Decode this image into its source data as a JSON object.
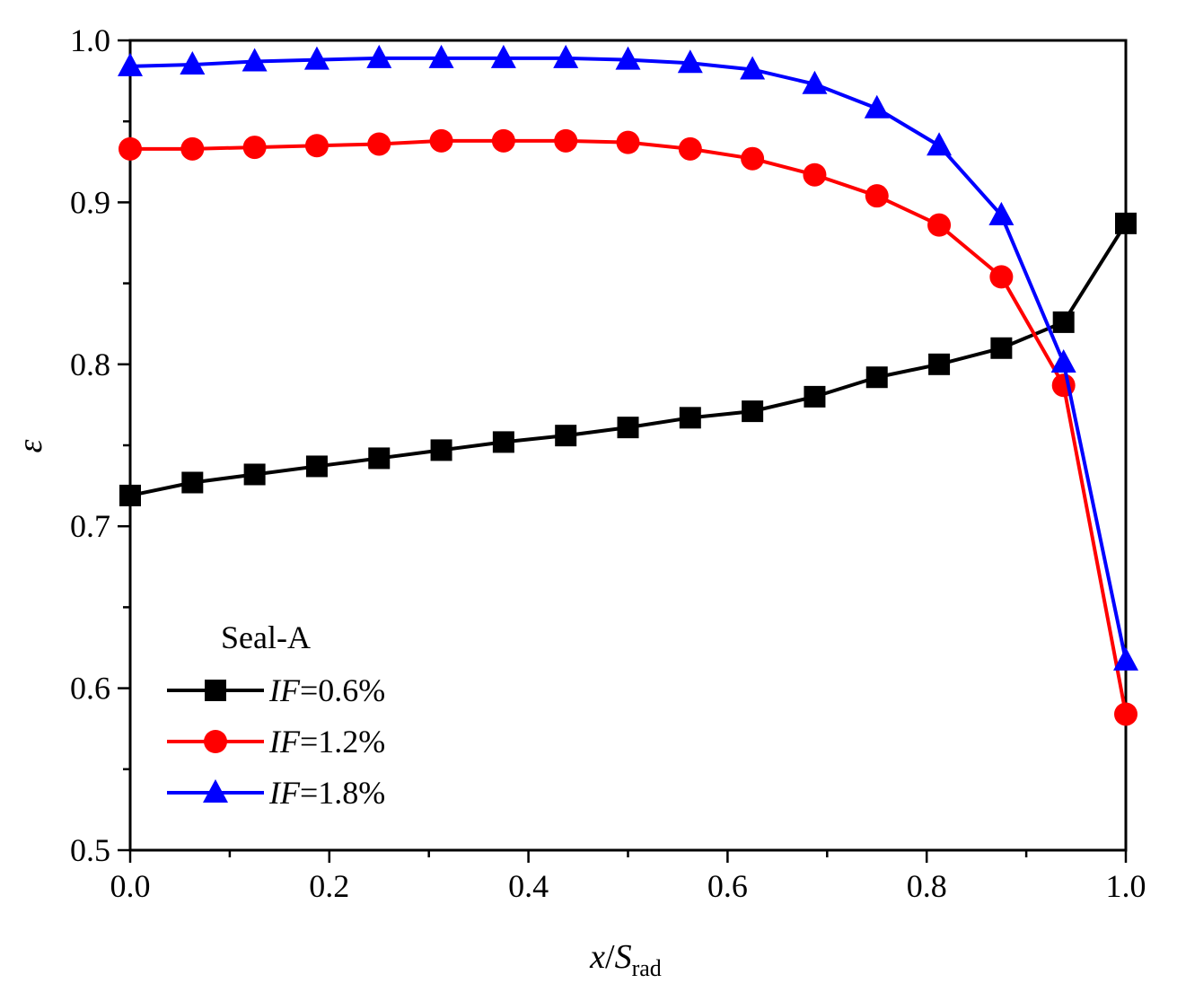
{
  "chart_data": {
    "type": "line",
    "title": "",
    "xlabel": {
      "main": "x",
      "sep": "/",
      "var": "S",
      "sub": "rad"
    },
    "ylabel": "ε",
    "xlim": [
      0.0,
      1.0
    ],
    "ylim": [
      0.5,
      1.0
    ],
    "x_ticks": [
      0.0,
      0.2,
      0.4,
      0.6,
      0.8,
      1.0
    ],
    "x_tick_labels": [
      "0.0",
      "0.2",
      "0.4",
      "0.6",
      "0.8",
      "1.0"
    ],
    "y_ticks": [
      0.5,
      0.6,
      0.7,
      0.8,
      0.9,
      1.0
    ],
    "y_tick_labels": [
      "0.5",
      "0.6",
      "0.7",
      "0.8",
      "0.9",
      "1.0"
    ],
    "grid": false,
    "legend": {
      "placement": "lower-left",
      "title": "Seal-A"
    },
    "x": [
      0.0,
      0.0625,
      0.125,
      0.1875,
      0.25,
      0.3125,
      0.375,
      0.4375,
      0.5,
      0.5625,
      0.625,
      0.6875,
      0.75,
      0.8125,
      0.875,
      0.9375,
      1.0
    ],
    "series": [
      {
        "name_italic": "IF",
        "name_rest": "=0.6%",
        "color": "#000000",
        "marker": "square",
        "values": [
          0.719,
          0.727,
          0.732,
          0.737,
          0.742,
          0.747,
          0.752,
          0.756,
          0.761,
          0.767,
          0.771,
          0.78,
          0.792,
          0.8,
          0.81,
          0.826,
          0.887
        ]
      },
      {
        "name_italic": "IF",
        "name_rest": "=1.2%",
        "color": "#ff0000",
        "marker": "circle",
        "values": [
          0.933,
          0.933,
          0.934,
          0.935,
          0.936,
          0.938,
          0.938,
          0.938,
          0.937,
          0.933,
          0.927,
          0.917,
          0.904,
          0.886,
          0.854,
          0.787,
          0.584
        ]
      },
      {
        "name_italic": "IF",
        "name_rest": "=1.8%",
        "color": "#0000ff",
        "marker": "triangle",
        "values": [
          0.984,
          0.985,
          0.987,
          0.988,
          0.989,
          0.989,
          0.989,
          0.989,
          0.988,
          0.986,
          0.982,
          0.973,
          0.958,
          0.935,
          0.892,
          0.801,
          0.617
        ]
      }
    ]
  }
}
